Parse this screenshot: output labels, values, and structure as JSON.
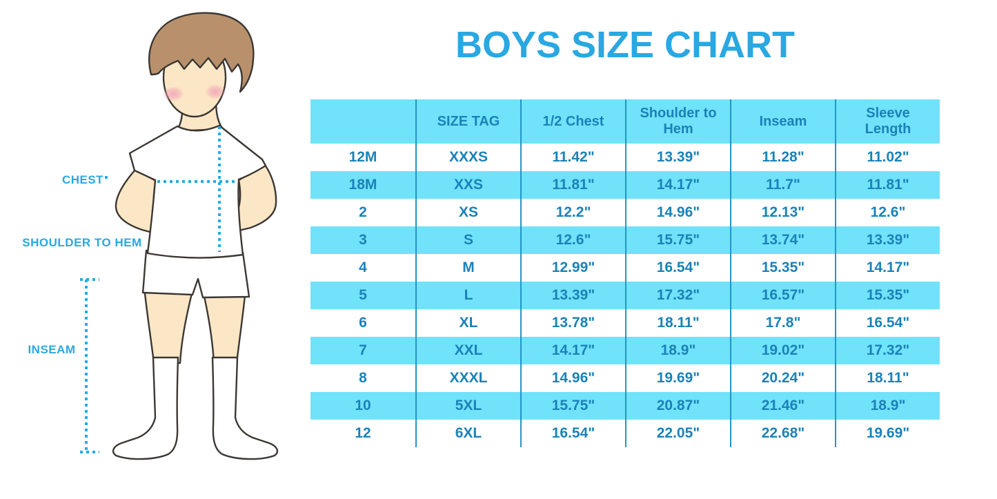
{
  "title": "BOYS SIZE CHART",
  "figure": {
    "labels": {
      "chest": "CHEST",
      "shoulder_to_hem": "SHOULDER TO HEM",
      "inseam": "INSEAM"
    }
  },
  "chart_data": {
    "type": "table",
    "title": "BOYS SIZE CHART",
    "columns": [
      "",
      "SIZE TAG",
      "1/2 Chest",
      "Shoulder to Hem",
      "Inseam",
      "Sleeve Length"
    ],
    "rows": [
      [
        "12M",
        "XXXS",
        "11.42\"",
        "13.39\"",
        "11.28\"",
        "11.02\""
      ],
      [
        "18M",
        "XXS",
        "11.81\"",
        "14.17\"",
        "11.7\"",
        "11.81\""
      ],
      [
        "2",
        "XS",
        "12.2\"",
        "14.96\"",
        "12.13\"",
        "12.6\""
      ],
      [
        "3",
        "S",
        "12.6\"",
        "15.75\"",
        "13.74\"",
        "13.39\""
      ],
      [
        "4",
        "M",
        "12.99\"",
        "16.54\"",
        "15.35\"",
        "14.17\""
      ],
      [
        "5",
        "L",
        "13.39\"",
        "17.32\"",
        "16.57\"",
        "15.35\""
      ],
      [
        "6",
        "XL",
        "13.78\"",
        "18.11\"",
        "17.8\"",
        "16.54\""
      ],
      [
        "7",
        "XXL",
        "14.17\"",
        "18.9\"",
        "19.02\"",
        "17.32\""
      ],
      [
        "8",
        "XXXL",
        "14.96\"",
        "19.69\"",
        "20.24\"",
        "18.11\""
      ],
      [
        "10",
        "5XL",
        "15.75\"",
        "20.87\"",
        "21.46\"",
        "18.9\""
      ],
      [
        "12",
        "6XL",
        "16.54\"",
        "22.05\"",
        "22.68\"",
        "19.69\""
      ]
    ]
  },
  "colors": {
    "accent_blue": "#29A8E2",
    "band_cyan": "#70E2FA",
    "divider_blue": "#2195C9",
    "table_text_blue": "#1A82B8",
    "skin": "#FBE7C5",
    "hair_brown": "#B8916C",
    "cheek_pink": "#F2A5B8",
    "outline": "#3B3733"
  }
}
